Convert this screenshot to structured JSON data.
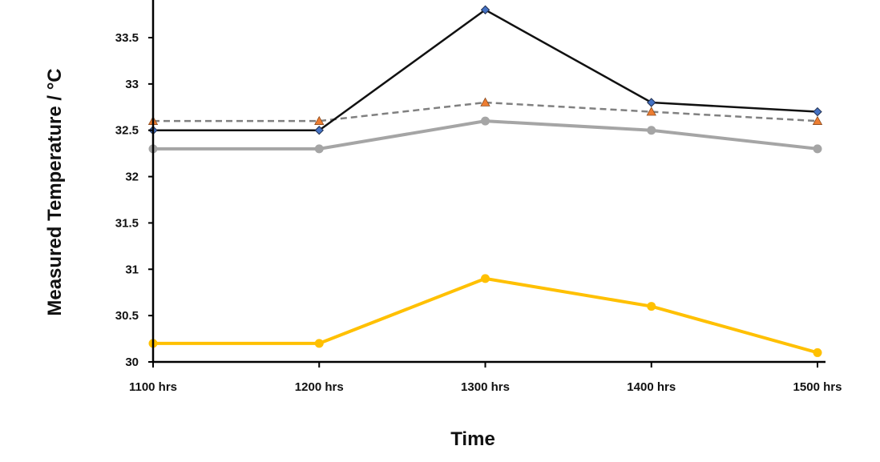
{
  "chart_data": {
    "type": "line",
    "title": "",
    "xlabel": "Time",
    "ylabel": "Measured Temperature / °C",
    "categories": [
      "1100 hrs",
      "1200 hrs",
      "1300 hrs",
      "1400 hrs",
      "1500 hrs"
    ],
    "ylim": [
      30,
      34
    ],
    "yticks": [
      "30",
      "30.5",
      "31",
      "31.5",
      "32",
      "32.5",
      "33",
      "33.5"
    ],
    "grid": false,
    "legend": "none",
    "series": [
      {
        "values": [
          32.5,
          32.5,
          33.8,
          32.8,
          32.7
        ],
        "color": "#111111",
        "marker": "diamond",
        "marker_color": "#4472C4",
        "line_style": "solid"
      },
      {
        "values": [
          32.6,
          32.6,
          32.8,
          32.7,
          32.6
        ],
        "color": "#808080",
        "marker": "triangle",
        "marker_color": "#ED7D31",
        "line_style": "dashed"
      },
      {
        "values": [
          32.3,
          32.3,
          32.6,
          32.5,
          32.3
        ],
        "color": "#A5A5A5",
        "marker": "circle",
        "marker_color": "#A5A5A5",
        "line_style": "solid"
      },
      {
        "values": [
          30.2,
          30.2,
          30.9,
          30.6,
          30.1
        ],
        "color": "#FFC000",
        "marker": "circle",
        "marker_color": "#FFC000",
        "line_style": "solid"
      }
    ]
  }
}
